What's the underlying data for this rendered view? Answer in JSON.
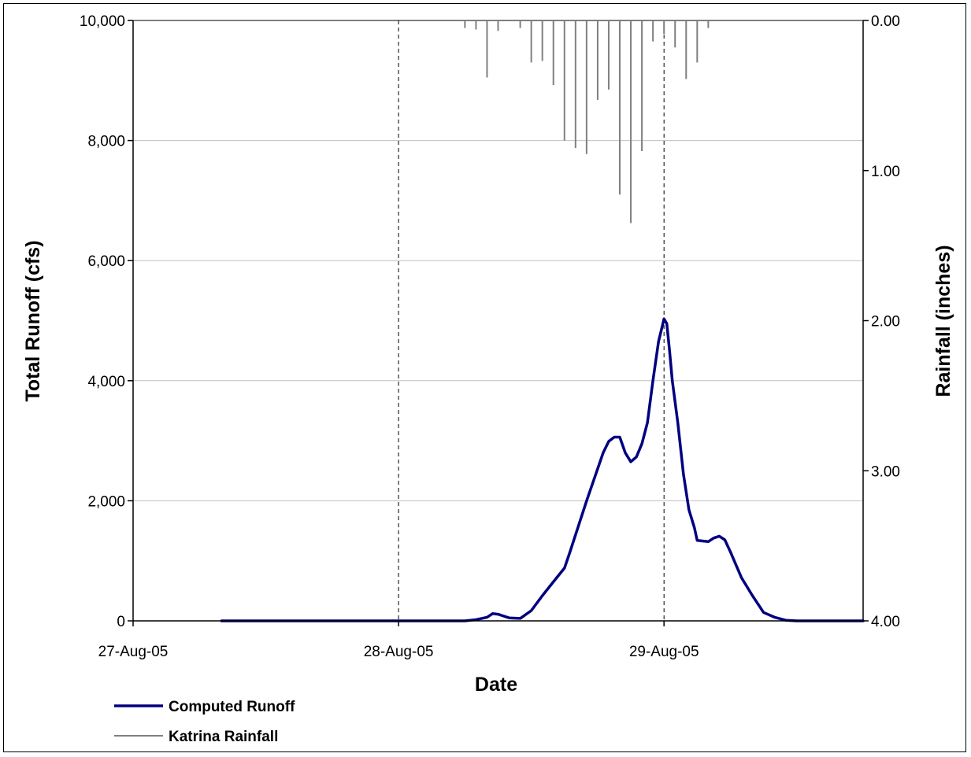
{
  "chart_data": {
    "type": "line",
    "title": "",
    "xlabel": "Date",
    "ylabel": "Total Runoff (cfs)",
    "y2label": "Rainfall (inches)",
    "x_range_days": [
      "2005-08-27T00:00",
      "2005-08-29T18:00"
    ],
    "x_tick_labels": [
      "27-Aug-05",
      "28-Aug-05",
      "29-Aug-05"
    ],
    "x_tick_dates": [
      "2005-08-27",
      "2005-08-28",
      "2005-08-29"
    ],
    "ylim": [
      0,
      10000
    ],
    "y_ticks": [
      0,
      2000,
      4000,
      6000,
      8000,
      10000
    ],
    "y_tick_labels": [
      "0",
      "2,000",
      "4,000",
      "6,000",
      "8,000",
      "10,000"
    ],
    "y2lim": [
      0,
      4
    ],
    "y2_reversed": true,
    "y2_ticks": [
      0,
      1,
      2,
      3,
      4
    ],
    "y2_tick_labels": [
      "0.00",
      "1.00",
      "2.00",
      "3.00",
      "4.00"
    ],
    "grid": "horizontal major gridlines; dashed vertical lines at each date",
    "legend_position": "bottom-left",
    "legend": [
      "Computed Runoff",
      "Katrina Rainfall"
    ],
    "colors": {
      "runoff": "#000080",
      "rainfall": "#808080",
      "grid": "#c0c0c0",
      "frame": "#808080"
    },
    "series": [
      {
        "name": "Computed Runoff",
        "axis": "left",
        "style": "line",
        "points": [
          [
            "2005-08-27T08:00",
            0
          ],
          [
            "2005-08-28T00:00",
            0
          ],
          [
            "2005-08-28T06:00",
            0
          ],
          [
            "2005-08-28T07:00",
            20
          ],
          [
            "2005-08-28T08:00",
            60
          ],
          [
            "2005-08-28T08:30",
            120
          ],
          [
            "2005-08-28T09:00",
            110
          ],
          [
            "2005-08-28T10:00",
            50
          ],
          [
            "2005-08-28T11:00",
            40
          ],
          [
            "2005-08-28T12:00",
            170
          ],
          [
            "2005-08-28T13:00",
            420
          ],
          [
            "2005-08-28T14:00",
            650
          ],
          [
            "2005-08-28T15:00",
            880
          ],
          [
            "2005-08-28T15:30",
            1150
          ],
          [
            "2005-08-28T17:00",
            2000
          ],
          [
            "2005-08-28T18:30",
            2800
          ],
          [
            "2005-08-28T19:00",
            2990
          ],
          [
            "2005-08-28T19:30",
            3060
          ],
          [
            "2005-08-28T20:00",
            3060
          ],
          [
            "2005-08-28T20:30",
            2800
          ],
          [
            "2005-08-28T21:00",
            2650
          ],
          [
            "2005-08-28T21:30",
            2730
          ],
          [
            "2005-08-28T22:00",
            2950
          ],
          [
            "2005-08-28T22:30",
            3300
          ],
          [
            "2005-08-28T23:00",
            4000
          ],
          [
            "2005-08-28T23:30",
            4650
          ],
          [
            "2005-08-29T00:00",
            5030
          ],
          [
            "2005-08-29T00:15",
            4950
          ],
          [
            "2005-08-29T00:30",
            4500
          ],
          [
            "2005-08-29T00:45",
            4000
          ],
          [
            "2005-08-29T01:15",
            3300
          ],
          [
            "2005-08-29T01:45",
            2450
          ],
          [
            "2005-08-29T02:15",
            1850
          ],
          [
            "2005-08-29T02:45",
            1550
          ],
          [
            "2005-08-29T03:00",
            1340
          ],
          [
            "2005-08-29T04:00",
            1320
          ],
          [
            "2005-08-29T04:30",
            1380
          ],
          [
            "2005-08-29T05:00",
            1410
          ],
          [
            "2005-08-29T05:30",
            1350
          ],
          [
            "2005-08-29T06:00",
            1150
          ],
          [
            "2005-08-29T07:00",
            720
          ],
          [
            "2005-08-29T08:00",
            420
          ],
          [
            "2005-08-29T09:00",
            140
          ],
          [
            "2005-08-29T10:00",
            60
          ],
          [
            "2005-08-29T11:00",
            10
          ],
          [
            "2005-08-29T12:00",
            0
          ],
          [
            "2005-08-29T18:00",
            0
          ]
        ]
      },
      {
        "name": "Katrina Rainfall",
        "axis": "right",
        "style": "hanging-bars",
        "points": [
          [
            "2005-08-28T06:00",
            0.05
          ],
          [
            "2005-08-28T07:00",
            0.06
          ],
          [
            "2005-08-28T08:00",
            0.38
          ],
          [
            "2005-08-28T09:00",
            0.07
          ],
          [
            "2005-08-28T11:00",
            0.05
          ],
          [
            "2005-08-28T12:00",
            0.28
          ],
          [
            "2005-08-28T13:00",
            0.27
          ],
          [
            "2005-08-28T14:00",
            0.43
          ],
          [
            "2005-08-28T15:00",
            0.8
          ],
          [
            "2005-08-28T16:00",
            0.85
          ],
          [
            "2005-08-28T17:00",
            0.89
          ],
          [
            "2005-08-28T18:00",
            0.53
          ],
          [
            "2005-08-28T19:00",
            0.46
          ],
          [
            "2005-08-28T20:00",
            1.16
          ],
          [
            "2005-08-28T21:00",
            1.35
          ],
          [
            "2005-08-28T22:00",
            0.87
          ],
          [
            "2005-08-28T23:00",
            0.14
          ],
          [
            "2005-08-29T00:00",
            0.09
          ],
          [
            "2005-08-29T01:00",
            0.18
          ],
          [
            "2005-08-29T02:00",
            0.39
          ],
          [
            "2005-08-29T03:00",
            0.28
          ],
          [
            "2005-08-29T04:00",
            0.05
          ]
        ]
      }
    ]
  }
}
